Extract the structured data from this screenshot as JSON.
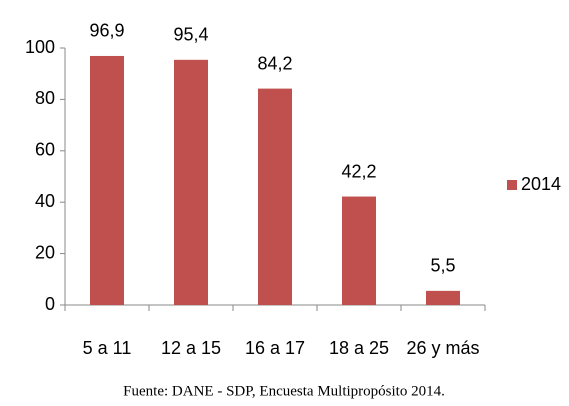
{
  "chart_data": {
    "type": "bar",
    "categories": [
      "5 a 11",
      "12 a 15",
      "16 a 17",
      "18 a 25",
      "26 y más"
    ],
    "series": [
      {
        "name": "2014",
        "color": "#c0504d",
        "values": [
          96.9,
          95.4,
          84.2,
          42.2,
          5.5
        ],
        "value_labels": [
          "96,9",
          "95,4",
          "84,2",
          "42,2",
          "5,5"
        ]
      }
    ],
    "ylim": [
      0,
      100
    ],
    "yticks": [
      0,
      20,
      40,
      60,
      80,
      100
    ],
    "grid": false,
    "legend": "right",
    "source": "Fuente: DANE - SDP, Encuesta Multipropósito 2014."
  }
}
